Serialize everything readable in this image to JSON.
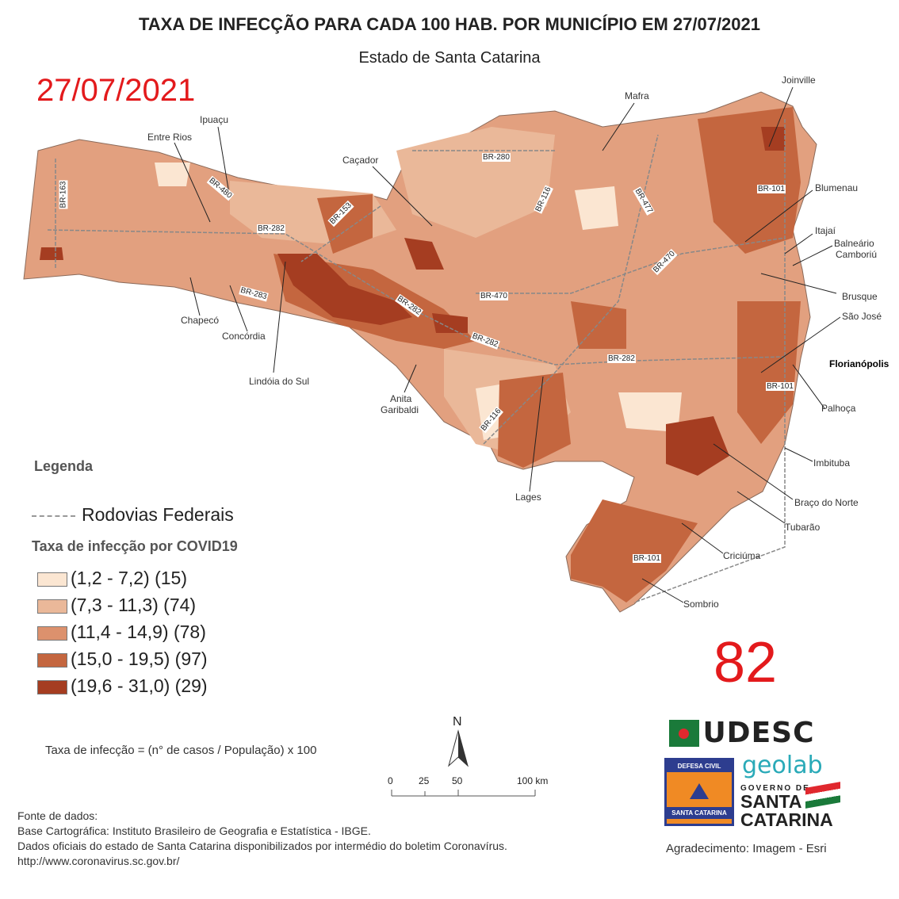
{
  "title": "TAXA DE INFECÇÃO PARA CADA 100 HAB. POR MUNICÍPIO EM 27/07/2021",
  "subtitle": "Estado de Santa Catarina",
  "date_stamp": "27/07/2021",
  "count_stamp": "82",
  "cities": [
    "Joinville",
    "Mafra",
    "Ipuaçu",
    "Entre Rios",
    "Caçador",
    "Blumenau",
    "Itajaí",
    "Balneário",
    "Camboriú",
    "Brusque",
    "São José",
    "Florianópolis",
    "Palhoça",
    "Imbituba",
    "Braço do Norte",
    "Tubarão",
    "Criciúma",
    "Sombrio",
    "Lages",
    "Anita",
    "Garibaldi",
    "Lindóia do Sul",
    "Concórdia",
    "Chapecó"
  ],
  "roads": [
    "BR-163",
    "BR-480",
    "BR-282",
    "BR-153",
    "BR-283",
    "BR-282",
    "BR-280",
    "BR-116",
    "BR-477",
    "BR-101",
    "BR-470",
    "BR-470",
    "BR-282",
    "BR-282",
    "BR-116",
    "BR-101",
    "BR-101"
  ],
  "legend": {
    "heading": "Legenda",
    "roads_label": "Rodovias Federais",
    "class_title": "Taxa de infecção por COVID19",
    "classes": [
      {
        "label": "(1,2 - 7,2) (15)",
        "color": "#fbe6d2"
      },
      {
        "label": "(7,3 - 11,3) (74)",
        "color": "#eab899"
      },
      {
        "label": "(11,4 - 14,9) (78)",
        "color": "#dc916d"
      },
      {
        "label": "(15,0 - 19,5) (97)",
        "color": "#c4663f"
      },
      {
        "label": "(19,6 - 31,0) (29)",
        "color": "#a53d21"
      }
    ]
  },
  "formula": "Taxa de infecção = (n° de casos / População) x 100",
  "north": "N",
  "scale": {
    "ticks": [
      "0",
      "25",
      "50",
      "100 km"
    ]
  },
  "sources": [
    "Fonte de dados:",
    "Base Cartográfica: Instituto Brasileiro de Geografia e Estatística - IBGE.",
    "Dados oficiais do estado de Santa Catarina disponibilizados por intermédio do boletim Coronavírus.",
    "http://www.coronavirus.sc.gov.br/"
  ],
  "logos": {
    "udesc": "UDESC",
    "defesa_top": "DEFESA CIVIL",
    "defesa_bottom": "SANTA CATARINA",
    "geolab": "geolab",
    "gov1": "GOVERNO DE",
    "gov2": "SANTA",
    "gov3": "CATARINA"
  },
  "credit": "Agradecimento: Imagem - Esri"
}
